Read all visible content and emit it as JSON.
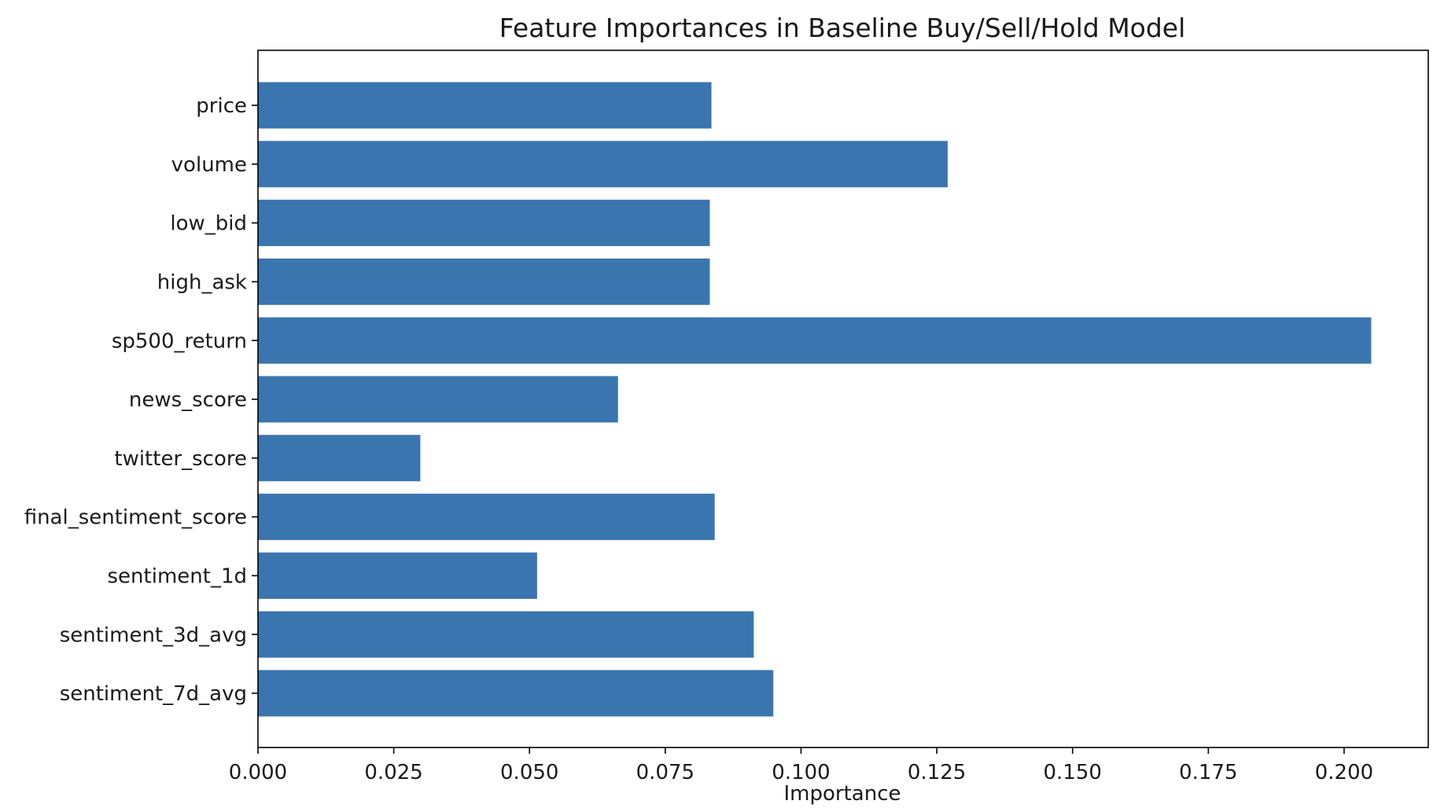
{
  "chart_data": {
    "type": "bar",
    "orientation": "horizontal",
    "title": "Feature Importances in Baseline Buy/Sell/Hold Model",
    "xlabel": "Importance",
    "ylabel": "",
    "categories": [
      "price",
      "volume",
      "low_bid",
      "high_ask",
      "sp500_return",
      "news_score",
      "twitter_score",
      "final_sentiment_score",
      "sentiment_1d",
      "sentiment_3d_avg",
      "sentiment_7d_avg"
    ],
    "values": [
      0.0835,
      0.127,
      0.0832,
      0.0832,
      0.205,
      0.0663,
      0.0299,
      0.0841,
      0.0514,
      0.0913,
      0.0949
    ],
    "xlim": [
      0.0,
      0.2155
    ],
    "xticks": [
      0.0,
      0.025,
      0.05,
      0.075,
      0.1,
      0.125,
      0.15,
      0.175,
      0.2
    ],
    "xtick_labels": [
      "0.000",
      "0.025",
      "0.050",
      "0.075",
      "0.100",
      "0.125",
      "0.150",
      "0.175",
      "0.200"
    ],
    "grid": false,
    "legend": "none",
    "bar_color": "#3b75af",
    "axis_color": "#000000"
  }
}
